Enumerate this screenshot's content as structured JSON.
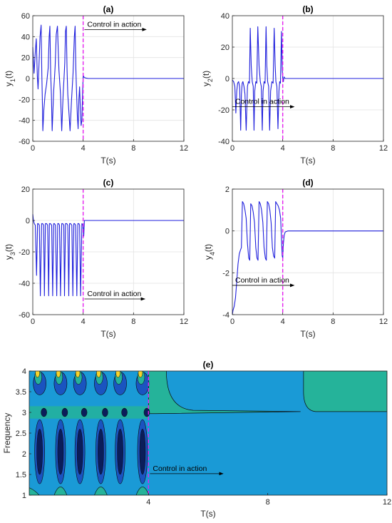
{
  "chart_data": [
    {
      "id": "a",
      "type": "line",
      "title": "(a)",
      "xlabel": "T(s)",
      "ylabel": "y",
      "ylabel_sub": "1",
      "ylabel_suffix": "(t)",
      "xlim": [
        0,
        12
      ],
      "ylim": [
        -60,
        60
      ],
      "xticks": [
        0,
        4,
        8,
        12
      ],
      "yticks": [
        -60,
        -40,
        -20,
        0,
        20,
        40,
        60
      ],
      "grid": true,
      "control_time": 4,
      "annotation": "Control in action",
      "annotation_pos": [
        4.1,
        0.89,
        9,
        0.89
      ],
      "color": "#1f1fdc",
      "x": [
        0,
        0.1,
        0.2,
        0.28,
        0.36,
        0.42,
        0.5,
        0.58,
        0.66,
        0.72,
        0.76,
        0.8,
        0.88,
        0.98,
        1.1,
        1.22,
        1.3,
        1.36,
        1.42,
        1.48,
        1.54,
        1.6,
        1.66,
        1.72,
        1.78,
        1.86,
        1.96,
        2.08,
        2.2,
        2.3,
        2.36,
        2.42,
        2.48,
        2.54,
        2.6,
        2.66,
        2.72,
        2.78,
        2.86,
        2.96,
        3.08,
        3.2,
        3.3,
        3.36,
        3.42,
        3.48,
        3.54,
        3.6,
        3.66,
        3.72,
        3.78,
        3.84,
        3.9,
        3.96,
        4,
        4.08,
        4.2,
        4.4,
        5,
        8,
        12
      ],
      "y": [
        30,
        5,
        25,
        38,
        2,
        -10,
        15,
        40,
        51,
        3,
        -20,
        -50,
        -30,
        -15,
        -5,
        10,
        40,
        50,
        5,
        -15,
        -50,
        -30,
        -12,
        0,
        12,
        42,
        50,
        8,
        -15,
        -50,
        -30,
        -12,
        0,
        15,
        45,
        50,
        8,
        -15,
        -30,
        -50,
        -20,
        5,
        40,
        50,
        10,
        -15,
        -35,
        -48,
        -20,
        -8,
        -30,
        -45,
        -40,
        -10,
        3,
        1,
        0.5,
        0,
        0,
        0,
        0
      ]
    },
    {
      "id": "b",
      "type": "line",
      "title": "(b)",
      "xlabel": "T(s)",
      "ylabel": "y",
      "ylabel_sub": "2",
      "ylabel_suffix": "(t)",
      "xlim": [
        0,
        12
      ],
      "ylim": [
        -40,
        40
      ],
      "xticks": [
        0,
        4,
        8,
        12
      ],
      "yticks": [
        -40,
        -20,
        0,
        20,
        40
      ],
      "grid": true,
      "control_time": 4,
      "annotation": "Control in action",
      "annotation_pos": [
        0,
        -18,
        4.9,
        -18
      ],
      "color": "#1f1fdc",
      "x": [
        0,
        0.1,
        0.2,
        0.28,
        0.35,
        0.42,
        0.5,
        0.58,
        0.66,
        0.72,
        0.78,
        0.84,
        0.92,
        1,
        1.1,
        1.2,
        1.28,
        1.36,
        1.42,
        1.5,
        1.58,
        1.66,
        1.72,
        1.78,
        1.86,
        1.94,
        2.02,
        2.12,
        2.22,
        2.3,
        2.38,
        2.44,
        2.52,
        2.6,
        2.68,
        2.74,
        2.8,
        2.88,
        2.96,
        3.04,
        3.14,
        3.24,
        3.32,
        3.4,
        3.46,
        3.54,
        3.62,
        3.7,
        3.76,
        3.82,
        3.9,
        3.96,
        4,
        4.05,
        4.1,
        4.2,
        4.5,
        8,
        12
      ],
      "y": [
        -1,
        -2,
        -5,
        -22,
        -8,
        -3,
        -2,
        -5,
        -33,
        -10,
        -3,
        -2,
        -5,
        -10,
        -33,
        -5,
        -2,
        -3,
        32,
        8,
        -2,
        -5,
        -33,
        -8,
        -2,
        -3,
        33,
        8,
        -2,
        -5,
        -33,
        -8,
        -2,
        -3,
        33,
        8,
        -2,
        -5,
        -33,
        -8,
        -2,
        -3,
        32,
        8,
        -2,
        -5,
        -32,
        -8,
        -2,
        -3,
        30,
        5,
        0,
        -2,
        1,
        0,
        0,
        0,
        0
      ]
    },
    {
      "id": "c",
      "type": "line",
      "title": "(c)",
      "xlabel": "T(s)",
      "ylabel": "y",
      "ylabel_sub": "3",
      "ylabel_suffix": "(t)",
      "xlim": [
        0,
        12
      ],
      "ylim": [
        -60,
        20
      ],
      "xticks": [
        0,
        4,
        8,
        12
      ],
      "yticks": [
        -60,
        -40,
        -20,
        0,
        20
      ],
      "grid": true,
      "control_time": 4,
      "annotation": "Control in action",
      "annotation_pos": [
        4.1,
        -50,
        8.9,
        -50
      ],
      "color": "#1f1fdc",
      "x": [
        0,
        0.05,
        0.12,
        0.2,
        0.3,
        0.38,
        0.44,
        0.52,
        0.6,
        0.7,
        0.78,
        0.86,
        0.92,
        1,
        1.1,
        1.18,
        1.26,
        1.32,
        1.4,
        1.5,
        1.58,
        1.66,
        1.72,
        1.8,
        1.9,
        1.98,
        2.06,
        2.12,
        2.2,
        2.3,
        2.38,
        2.46,
        2.52,
        2.6,
        2.7,
        2.78,
        2.86,
        2.92,
        3,
        3.1,
        3.18,
        3.26,
        3.32,
        3.4,
        3.5,
        3.58,
        3.66,
        3.72,
        3.8,
        3.9,
        3.98,
        4.05,
        4.1,
        4.2,
        4.5,
        8,
        12
      ],
      "y": [
        4,
        0,
        -2,
        -3,
        -35,
        -2,
        -2,
        -3,
        -48,
        -2,
        -2,
        -3,
        -48,
        -2,
        -2,
        -3,
        -48,
        -2,
        -2,
        -3,
        -48,
        -2,
        -2,
        -3,
        -48,
        -2,
        -2,
        -3,
        -48,
        -2,
        -2,
        -3,
        -48,
        -2,
        -2,
        -3,
        -48,
        -2,
        -2,
        -3,
        -48,
        -2,
        -2,
        -3,
        -48,
        -2,
        -2,
        -3,
        -48,
        -2,
        -3,
        -10,
        0,
        0,
        0,
        0,
        0
      ]
    },
    {
      "id": "d",
      "type": "line",
      "title": "(d)",
      "xlabel": "T(s)",
      "ylabel": "y",
      "ylabel_sub": "4",
      "ylabel_suffix": "(t)",
      "xlim": [
        0,
        12
      ],
      "ylim": [
        -4,
        2
      ],
      "xticks": [
        0,
        4,
        8,
        12
      ],
      "yticks": [
        -4,
        -2,
        0,
        2
      ],
      "grid": true,
      "control_time": 4,
      "annotation": "Control in action",
      "annotation_pos": [
        0,
        -2.6,
        4.9,
        -2.6
      ],
      "color": "#1f1fdc",
      "x": [
        0,
        0.05,
        0.15,
        0.25,
        0.35,
        0.45,
        0.55,
        0.65,
        0.72,
        0.8,
        0.9,
        1,
        1.1,
        1.2,
        1.3,
        1.38,
        1.46,
        1.56,
        1.66,
        1.76,
        1.86,
        1.96,
        2.04,
        2.12,
        2.22,
        2.32,
        2.42,
        2.52,
        2.62,
        2.7,
        2.78,
        2.88,
        2.98,
        3.08,
        3.18,
        3.28,
        3.36,
        3.44,
        3.54,
        3.64,
        3.74,
        3.84,
        3.9,
        3.96,
        4,
        4.05,
        4.12,
        4.2,
        4.4,
        5,
        8,
        12
      ],
      "y": [
        -4,
        -3.8,
        -3.6,
        -3.2,
        -2.4,
        -1.6,
        -1.1,
        -0.9,
        -0.8,
        1.4,
        1.3,
        1.0,
        0.6,
        -0.6,
        -1.3,
        -1.4,
        1.3,
        1.2,
        0.9,
        0.4,
        -0.8,
        -1.3,
        -1.4,
        1.4,
        1.3,
        1.0,
        0.4,
        -0.8,
        -1.3,
        -1.4,
        1.4,
        1.3,
        1.0,
        0.4,
        -0.8,
        -1.2,
        -1.3,
        1.4,
        1.3,
        1.2,
        1.0,
        0.6,
        -0.4,
        -1.2,
        -1.3,
        -0.6,
        -0.2,
        -0.05,
        0,
        0,
        0,
        0
      ]
    },
    {
      "id": "e",
      "type": "heatmap",
      "title": "(e)",
      "xlabel": "T(s)",
      "ylabel": "Frequency",
      "xlim": [
        0,
        12
      ],
      "ylim": [
        1,
        4
      ],
      "xticks": [
        4,
        8,
        12
      ],
      "yticks": [
        1,
        1.5,
        2,
        2.5,
        3,
        3.5,
        4
      ],
      "control_time": 4,
      "annotation": "Control in action",
      "annotation_pos": [
        4.05,
        1.52,
        6.5,
        1.52
      ],
      "background_color": "#1a9ad6",
      "osc_centers": [
        0.35,
        1.05,
        1.7,
        2.4,
        3.05,
        3.8
      ],
      "colors": {
        "dark_navy": "#0b1d5a",
        "blue": "#1a54c0",
        "mid_blue": "#2074d8",
        "teal": "#25b39a",
        "yellow": "#f5d22b",
        "orange": "#e8a33a",
        "line": "#0a0a0a",
        "marker": "#e51ef0"
      }
    }
  ]
}
